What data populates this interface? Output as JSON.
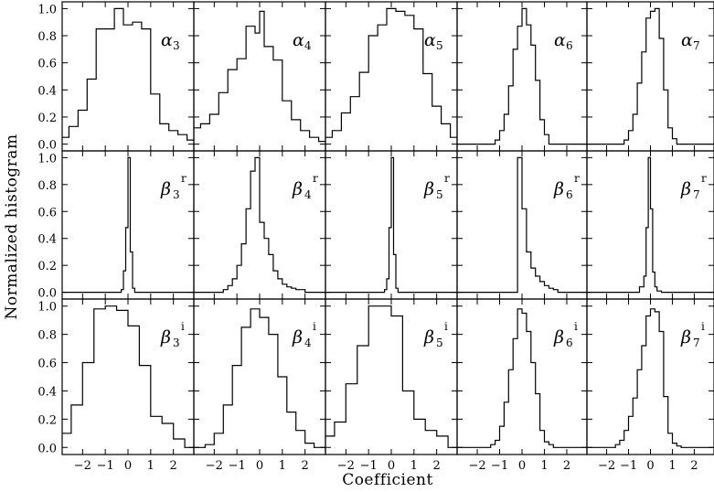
{
  "chart_data": {
    "type": "step-histogram-grid",
    "xlabel": "Coefficient",
    "ylabel": "Normalized histogram",
    "xlim": [
      -2.9,
      2.9
    ],
    "ylim": [
      -0.05,
      1.05
    ],
    "xticks": [
      -2,
      -1,
      0,
      1,
      2
    ],
    "xtick_labels": [
      "−2",
      "−1",
      "0",
      "1",
      "2"
    ],
    "ytick_labels": [
      "0.0",
      "0.2",
      "0.4",
      "0.6",
      "0.8",
      "1.0"
    ],
    "yticks": [
      0,
      0.2,
      0.4,
      0.6,
      0.8,
      1.0
    ],
    "rows": [
      {
        "panels": [
          {
            "symbol": "α",
            "sub": "3",
            "sup": "",
            "edges": [
              -2.9,
              -2.6,
              -2.2,
              -1.8,
              -1.4,
              -1.0,
              -0.6,
              -0.2,
              0.2,
              0.6,
              1.0,
              1.4,
              1.8,
              2.2,
              2.6,
              2.9
            ],
            "heights": [
              0.05,
              0.13,
              0.25,
              0.48,
              0.85,
              0.85,
              1.0,
              0.88,
              0.9,
              0.85,
              0.37,
              0.15,
              0.1,
              0.07,
              0.03
            ]
          },
          {
            "symbol": "α",
            "sub": "4",
            "sup": "",
            "edges": [
              -2.9,
              -2.6,
              -2.2,
              -1.8,
              -1.4,
              -1.0,
              -0.6,
              -0.2,
              0.0,
              0.2,
              0.6,
              1.0,
              1.4,
              1.8,
              2.2,
              2.6,
              2.9
            ],
            "heights": [
              0.12,
              0.15,
              0.22,
              0.38,
              0.55,
              0.63,
              0.87,
              0.82,
              0.98,
              0.72,
              0.62,
              0.32,
              0.18,
              0.1,
              0.05,
              0.02
            ]
          },
          {
            "symbol": "α",
            "sub": "5",
            "sup": "",
            "edges": [
              -2.9,
              -2.6,
              -2.2,
              -1.8,
              -1.4,
              -1.0,
              -0.6,
              -0.2,
              0.2,
              0.6,
              1.0,
              1.4,
              1.8,
              2.2,
              2.6,
              2.9
            ],
            "heights": [
              0.05,
              0.1,
              0.23,
              0.35,
              0.53,
              0.8,
              0.88,
              1.0,
              0.98,
              0.95,
              0.85,
              0.52,
              0.28,
              0.15,
              0.05
            ]
          },
          {
            "symbol": "α",
            "sub": "6",
            "sup": "",
            "edges": [
              -2.9,
              -1.2,
              -1.0,
              -0.8,
              -0.6,
              -0.4,
              -0.2,
              0.0,
              0.2,
              0.4,
              0.6,
              0.8,
              1.0,
              1.2,
              2.9
            ],
            "heights": [
              0.0,
              0.03,
              0.1,
              0.22,
              0.43,
              0.7,
              0.87,
              1.0,
              0.88,
              0.73,
              0.47,
              0.18,
              0.07,
              0.0
            ]
          },
          {
            "symbol": "α",
            "sub": "7",
            "sup": "",
            "edges": [
              -2.9,
              -1.2,
              -1.0,
              -0.8,
              -0.6,
              -0.4,
              -0.2,
              0.0,
              0.2,
              0.4,
              0.6,
              0.8,
              1.0,
              1.2,
              2.9
            ],
            "heights": [
              0.0,
              0.03,
              0.1,
              0.22,
              0.45,
              0.68,
              0.93,
              0.98,
              1.0,
              0.78,
              0.4,
              0.12,
              0.04,
              0.0
            ]
          }
        ]
      },
      {
        "panels": [
          {
            "symbol": "β",
            "sub": "3",
            "sup": "r",
            "edges": [
              -2.9,
              -0.3,
              -0.2,
              -0.1,
              0.0,
              0.1,
              0.2,
              0.3,
              2.9
            ],
            "heights": [
              0.0,
              0.02,
              0.16,
              0.48,
              1.0,
              0.3,
              0.03,
              0.0
            ]
          },
          {
            "symbol": "β",
            "sub": "4",
            "sup": "r",
            "edges": [
              -2.9,
              -1.6,
              -1.4,
              -1.2,
              -1.0,
              -0.8,
              -0.6,
              -0.4,
              -0.2,
              0.0,
              0.2,
              0.4,
              0.6,
              0.8,
              1.0,
              1.2,
              1.4,
              1.6,
              2.0,
              2.9
            ],
            "heights": [
              0.0,
              0.02,
              0.05,
              0.1,
              0.2,
              0.36,
              0.62,
              0.9,
              1.0,
              0.52,
              0.4,
              0.28,
              0.16,
              0.1,
              0.06,
              0.04,
              0.03,
              0.02,
              0.0
            ]
          },
          {
            "symbol": "β",
            "sub": "5",
            "sup": "r",
            "edges": [
              -2.9,
              -0.3,
              -0.2,
              -0.1,
              0.0,
              0.1,
              0.2,
              0.3,
              2.9
            ],
            "heights": [
              0.0,
              0.02,
              0.1,
              0.48,
              1.0,
              0.28,
              0.03,
              0.0
            ]
          },
          {
            "symbol": "β",
            "sub": "6",
            "sup": "r",
            "edges": [
              -2.9,
              -0.2,
              0.0,
              0.2,
              0.4,
              0.6,
              0.8,
              1.0,
              1.2,
              1.4,
              1.6,
              2.9
            ],
            "heights": [
              0.0,
              1.0,
              0.62,
              0.3,
              0.18,
              0.12,
              0.08,
              0.05,
              0.03,
              0.02,
              0.0
            ]
          },
          {
            "symbol": "β",
            "sub": "7",
            "sup": "r",
            "edges": [
              -2.9,
              -0.5,
              -0.3,
              -0.2,
              -0.1,
              0.0,
              0.1,
              0.2,
              0.3,
              0.5,
              2.9
            ],
            "heights": [
              0.0,
              0.04,
              0.12,
              0.48,
              1.0,
              0.62,
              0.15,
              0.04,
              0.01,
              0.0
            ]
          }
        ]
      },
      {
        "panels": [
          {
            "symbol": "β",
            "sub": "3",
            "sup": "i",
            "edges": [
              -2.9,
              -2.5,
              -2.0,
              -1.5,
              -1.0,
              -0.5,
              0.0,
              0.5,
              1.0,
              1.5,
              2.0,
              2.5,
              2.9
            ],
            "heights": [
              0.1,
              0.3,
              0.6,
              0.98,
              1.0,
              0.97,
              0.86,
              0.58,
              0.22,
              0.17,
              0.06,
              0.0
            ]
          },
          {
            "symbol": "β",
            "sub": "4",
            "sup": "i",
            "edges": [
              -2.9,
              -2.4,
              -2.0,
              -1.6,
              -1.2,
              -0.8,
              -0.4,
              0.0,
              0.4,
              0.8,
              1.2,
              1.6,
              2.0,
              2.4,
              2.9
            ],
            "heights": [
              0.0,
              0.02,
              0.1,
              0.3,
              0.58,
              0.85,
              0.98,
              0.92,
              0.8,
              0.5,
              0.25,
              0.12,
              0.03,
              0.0
            ]
          },
          {
            "symbol": "β",
            "sub": "5",
            "sup": "i",
            "edges": [
              -2.9,
              -2.5,
              -2.0,
              -1.5,
              -1.0,
              -0.5,
              0.0,
              0.5,
              1.0,
              1.5,
              2.0,
              2.5,
              2.9
            ],
            "heights": [
              0.08,
              0.18,
              0.45,
              0.72,
              1.0,
              1.0,
              0.93,
              0.4,
              0.2,
              0.12,
              0.08,
              0.0
            ]
          },
          {
            "symbol": "β",
            "sub": "6",
            "sup": "i",
            "edges": [
              -2.9,
              -1.4,
              -1.2,
              -1.0,
              -0.8,
              -0.6,
              -0.4,
              -0.2,
              0.0,
              0.2,
              0.4,
              0.6,
              0.8,
              1.0,
              1.2,
              1.4,
              2.9
            ],
            "heights": [
              0.0,
              0.02,
              0.05,
              0.15,
              0.32,
              0.55,
              0.77,
              0.98,
              0.95,
              0.82,
              0.6,
              0.38,
              0.12,
              0.04,
              0.02,
              0.0
            ]
          },
          {
            "symbol": "β",
            "sub": "7",
            "sup": "i",
            "edges": [
              -2.9,
              -1.6,
              -1.4,
              -1.2,
              -1.0,
              -0.8,
              -0.6,
              -0.4,
              -0.2,
              0.0,
              0.2,
              0.4,
              0.6,
              0.8,
              1.0,
              1.2,
              1.4,
              2.9
            ],
            "heights": [
              0.0,
              0.02,
              0.05,
              0.12,
              0.22,
              0.35,
              0.55,
              0.72,
              0.93,
              0.98,
              0.96,
              0.82,
              0.36,
              0.1,
              0.03,
              0.01,
              0.0
            ]
          }
        ]
      }
    ]
  }
}
